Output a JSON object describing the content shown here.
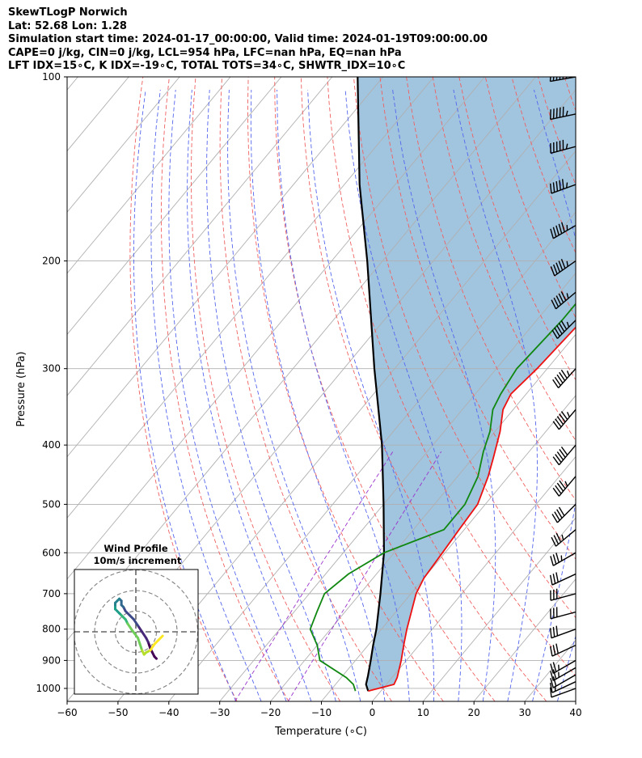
{
  "header": {
    "title": "SkewTLogP Norwich",
    "location": "Lat: 52.68   Lon: 1.28",
    "times": "Simulation start time: 2024-01-17_00:00:00, Valid time: 2024-01-19T09:00:00.00",
    "indices1": "CAPE=0 j/kg, CIN=0 j/kg, LCL=954 hPa, LFC=nan hPa, EQ=nan hPa",
    "indices2": "LFT IDX=15∘C, K IDX=-19∘C, TOTAL TOTS=34∘C, SHWTR_IDX=10∘C"
  },
  "chart_data": {
    "type": "skewt-logp",
    "xlabel": "Temperature (∘C)",
    "ylabel": "Pressure (hPa)",
    "xlim": [
      -60,
      40
    ],
    "ylim": [
      1050,
      100
    ],
    "xticks": [
      -60,
      -50,
      -40,
      -30,
      -20,
      -10,
      0,
      10,
      20,
      30,
      40
    ],
    "yticks": [
      100,
      200,
      300,
      400,
      500,
      600,
      700,
      800,
      900,
      1000
    ],
    "skew_deg_per_decade": 100,
    "temperature": {
      "color": "#ee1111",
      "points": [
        [
          1010,
          -2.5
        ],
        [
          985,
          1.5
        ],
        [
          960,
          1
        ],
        [
          900,
          -1
        ],
        [
          850,
          -3
        ],
        [
          800,
          -5
        ],
        [
          700,
          -9
        ],
        [
          660,
          -10
        ],
        [
          600,
          -10.5
        ],
        [
          550,
          -11
        ],
        [
          500,
          -11.5
        ],
        [
          450,
          -14
        ],
        [
          420,
          -16
        ],
        [
          380,
          -19
        ],
        [
          350,
          -22
        ],
        [
          330,
          -23
        ],
        [
          300,
          -22
        ],
        [
          250,
          -21
        ],
        [
          230,
          -19.5
        ],
        [
          210,
          -17
        ],
        [
          195,
          -15.5
        ],
        [
          175,
          -14
        ],
        [
          155,
          -11
        ],
        [
          140,
          -10
        ],
        [
          125,
          -8
        ],
        [
          110,
          -6
        ],
        [
          100,
          -5
        ]
      ]
    },
    "dewpoint": {
      "color": "#118811",
      "points": [
        [
          1010,
          -5
        ],
        [
          985,
          -6.5
        ],
        [
          960,
          -9
        ],
        [
          900,
          -17
        ],
        [
          850,
          -20
        ],
        [
          800,
          -24
        ],
        [
          750,
          -25.5
        ],
        [
          700,
          -27
        ],
        [
          650,
          -25.5
        ],
        [
          600,
          -22
        ],
        [
          550,
          -14
        ],
        [
          500,
          -14
        ],
        [
          450,
          -16
        ],
        [
          410,
          -19
        ],
        [
          380,
          -21
        ],
        [
          350,
          -24
        ],
        [
          330,
          -25
        ],
        [
          300,
          -26
        ],
        [
          250,
          -25
        ],
        [
          230,
          -25
        ],
        [
          210,
          -24.5
        ],
        [
          190,
          -24
        ],
        [
          180,
          -24.5
        ],
        [
          165,
          -28
        ],
        [
          155,
          -29
        ],
        [
          140,
          -25
        ],
        [
          120,
          -20
        ],
        [
          100,
          -14
        ]
      ]
    },
    "parcel": {
      "color": "#000000",
      "points": [
        [
          1010,
          -2.5
        ],
        [
          985,
          -4
        ],
        [
          954,
          -5
        ],
        [
          900,
          -7
        ],
        [
          850,
          -9
        ],
        [
          800,
          -11
        ],
        [
          700,
          -16
        ],
        [
          600,
          -22
        ],
        [
          500,
          -30
        ],
        [
          400,
          -40
        ],
        [
          300,
          -54
        ],
        [
          200,
          -73
        ],
        [
          150,
          -87
        ],
        [
          100,
          -105
        ]
      ]
    },
    "shade_color": "#a1c4df",
    "winds": [
      {
        "p": 1000,
        "speed": 10,
        "dir": 250
      },
      {
        "p": 975,
        "speed": 15,
        "dir": 245
      },
      {
        "p": 950,
        "speed": 20,
        "dir": 240
      },
      {
        "p": 925,
        "speed": 25,
        "dir": 240
      },
      {
        "p": 900,
        "speed": 25,
        "dir": 240
      },
      {
        "p": 850,
        "speed": 30,
        "dir": 245
      },
      {
        "p": 800,
        "speed": 30,
        "dir": 250
      },
      {
        "p": 750,
        "speed": 30,
        "dir": 255
      },
      {
        "p": 700,
        "speed": 30,
        "dir": 255
      },
      {
        "p": 650,
        "speed": 30,
        "dir": 245
      },
      {
        "p": 600,
        "speed": 35,
        "dir": 240
      },
      {
        "p": 550,
        "speed": 35,
        "dir": 230
      },
      {
        "p": 500,
        "speed": 40,
        "dir": 225
      },
      {
        "p": 450,
        "speed": 45,
        "dir": 220
      },
      {
        "p": 400,
        "speed": 50,
        "dir": 220
      },
      {
        "p": 350,
        "speed": 55,
        "dir": 220
      },
      {
        "p": 300,
        "speed": 55,
        "dir": 222
      },
      {
        "p": 250,
        "speed": 55,
        "dir": 225
      },
      {
        "p": 225,
        "speed": 55,
        "dir": 230
      },
      {
        "p": 200,
        "speed": 55,
        "dir": 235
      },
      {
        "p": 175,
        "speed": 55,
        "dir": 240
      },
      {
        "p": 150,
        "speed": 55,
        "dir": 250
      },
      {
        "p": 130,
        "speed": 55,
        "dir": 255
      },
      {
        "p": 115,
        "speed": 55,
        "dir": 258
      },
      {
        "p": 100,
        "speed": 55,
        "dir": 260
      }
    ],
    "wind_profile": {
      "title": "Wind Profile",
      "subtitle": "10m/s increment",
      "rings": [
        10,
        20,
        30
      ],
      "points": [
        [
          13,
          -2
        ],
        [
          11,
          -4
        ],
        [
          9,
          -6
        ],
        [
          7,
          -9
        ],
        [
          5,
          -10
        ],
        [
          4,
          -11
        ],
        [
          3,
          -9
        ],
        [
          2,
          -6
        ],
        [
          1,
          -3
        ],
        [
          -2,
          1
        ],
        [
          -4,
          4
        ],
        [
          -5,
          6
        ],
        [
          -6,
          7
        ],
        [
          -7,
          8
        ],
        [
          -8,
          9
        ],
        [
          -9,
          10
        ],
        [
          -10,
          11
        ],
        [
          -10,
          12
        ],
        [
          -10,
          14
        ],
        [
          -9,
          15
        ],
        [
          -8,
          16
        ],
        [
          -7,
          15
        ],
        [
          -7,
          13
        ],
        [
          -6,
          12
        ],
        [
          -5,
          10
        ],
        [
          -3,
          8
        ],
        [
          -1,
          6
        ],
        [
          1,
          3
        ],
        [
          3,
          0
        ],
        [
          5,
          -3
        ],
        [
          6,
          -5
        ],
        [
          7,
          -8
        ],
        [
          8,
          -10
        ],
        [
          9,
          -12
        ],
        [
          10,
          -13
        ]
      ]
    }
  }
}
